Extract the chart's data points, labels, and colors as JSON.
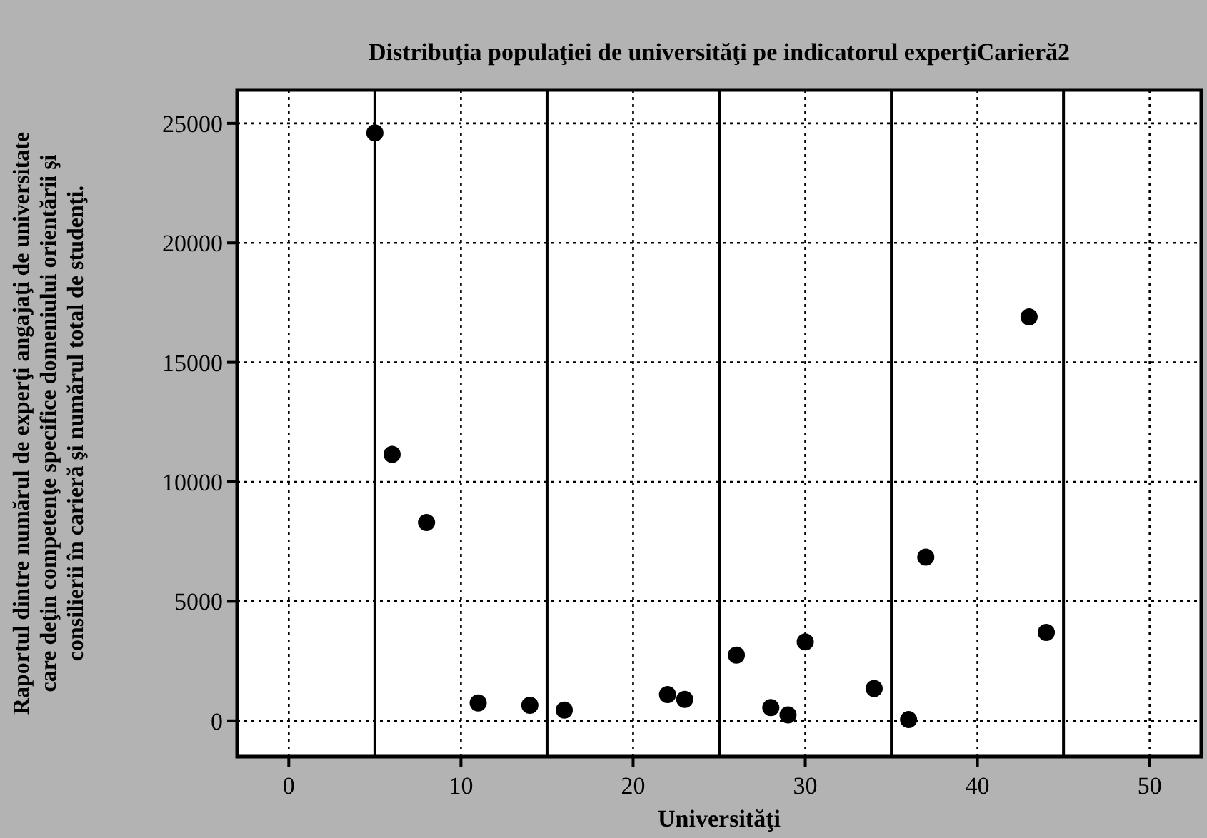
{
  "chart_data": {
    "type": "scatter",
    "title": "Distribuţia populaţiei de universităţi pe indicatorul experţiCarieră2",
    "xlabel": "Universităţi",
    "ylabel": "Raportul dintre numărul de experţi angajaţi de universitate\ncare deţin competenţe specifice domeniului orientării şi\nconsilierii în carieră şi numărul total de studenţi.",
    "series": [
      {
        "color": "#000000",
        "x": [
          5,
          6,
          8,
          11,
          14,
          16,
          22,
          23,
          26,
          28,
          29,
          30,
          34,
          36,
          37,
          43,
          44
        ],
        "values": [
          24600,
          11150,
          8300,
          750,
          650,
          450,
          1100,
          900,
          2750,
          550,
          250,
          3300,
          1350,
          50,
          6850,
          16900,
          3700
        ]
      }
    ],
    "xlim": [
      -3,
      53
    ],
    "xticks": [
      0,
      10,
      20,
      30,
      40,
      50
    ],
    "ylim": [
      -1500,
      26400
    ],
    "yticks": [
      0,
      5000,
      10000,
      15000,
      20000,
      25000
    ],
    "grid": true,
    "marker": "circle",
    "ref_lines": [
      {
        "axis": "x",
        "value": 5,
        "color": "#000000",
        "line_style": "solid"
      },
      {
        "axis": "x",
        "value": 15,
        "color": "#000000",
        "line_style": "solid"
      },
      {
        "axis": "x",
        "value": 25,
        "color": "#000000",
        "line_style": "solid"
      },
      {
        "axis": "x",
        "value": 35,
        "color": "#000000",
        "line_style": "solid"
      },
      {
        "axis": "x",
        "value": 45,
        "color": "#000000",
        "line_style": "solid"
      }
    ]
  }
}
